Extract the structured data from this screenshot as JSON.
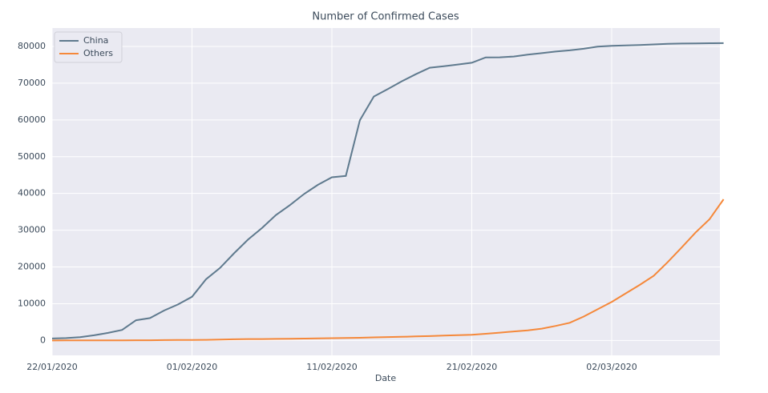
{
  "chart_data": {
    "type": "line",
    "title": "Number of Confirmed Cases",
    "x_label": "Date",
    "x": [
      "22/01/2020",
      "23/01/2020",
      "24/01/2020",
      "25/01/2020",
      "26/01/2020",
      "27/01/2020",
      "28/01/2020",
      "29/01/2020",
      "30/01/2020",
      "31/01/2020",
      "01/02/2020",
      "02/02/2020",
      "03/02/2020",
      "04/02/2020",
      "05/02/2020",
      "06/02/2020",
      "07/02/2020",
      "08/02/2020",
      "09/02/2020",
      "10/02/2020",
      "11/02/2020",
      "12/02/2020",
      "13/02/2020",
      "14/02/2020",
      "15/02/2020",
      "16/02/2020",
      "17/02/2020",
      "18/02/2020",
      "19/02/2020",
      "20/02/2020",
      "21/02/2020",
      "22/02/2020",
      "23/02/2020",
      "24/02/2020",
      "25/02/2020",
      "26/02/2020",
      "27/02/2020",
      "28/02/2020",
      "29/02/2020",
      "01/03/2020",
      "02/03/2020",
      "03/03/2020",
      "04/03/2020",
      "05/03/2020",
      "06/03/2020",
      "07/03/2020",
      "08/03/2020",
      "09/03/2020",
      "10/03/2020"
    ],
    "xticks": [
      "22/01/2020",
      "01/02/2020",
      "11/02/2020",
      "21/02/2020",
      "02/03/2020"
    ],
    "series": [
      {
        "name": "China",
        "color": "#5f7a8e",
        "values": [
          548,
          643,
          920,
          1406,
          2075,
          2877,
          5509,
          6087,
          8141,
          9802,
          11891,
          16630,
          19716,
          23707,
          27440,
          30587,
          34110,
          36814,
          39829,
          42354,
          44386,
          44759,
          59895,
          66358,
          68413,
          70513,
          72434,
          74211,
          74619,
          75077,
          75550,
          77001,
          77022,
          77241,
          77754,
          78166,
          78600,
          78928,
          79356,
          79932,
          80136,
          80261,
          80386,
          80537,
          80690,
          80770,
          80823,
          80860,
          80887
        ]
      },
      {
        "name": "Others",
        "color": "#f5883a",
        "values": [
          7,
          11,
          21,
          28,
          43,
          54,
          60,
          67,
          100,
          124,
          144,
          184,
          269,
          333,
          384,
          396,
          438,
          476,
          515,
          582,
          634,
          693,
          735,
          848,
          938,
          1011,
          1114,
          1196,
          1344,
          1439,
          1557,
          1823,
          2140,
          2464,
          2772,
          3226,
          3972,
          4812,
          6500,
          8500,
          10500,
          12800,
          15100,
          17600,
          21300,
          25300,
          29400,
          33000,
          38400
        ]
      }
    ],
    "ylim": [
      -4050,
      85000
    ],
    "yticks": [
      0,
      10000,
      20000,
      30000,
      40000,
      50000,
      60000,
      70000,
      80000
    ],
    "grid": true,
    "legend": "upper left"
  }
}
